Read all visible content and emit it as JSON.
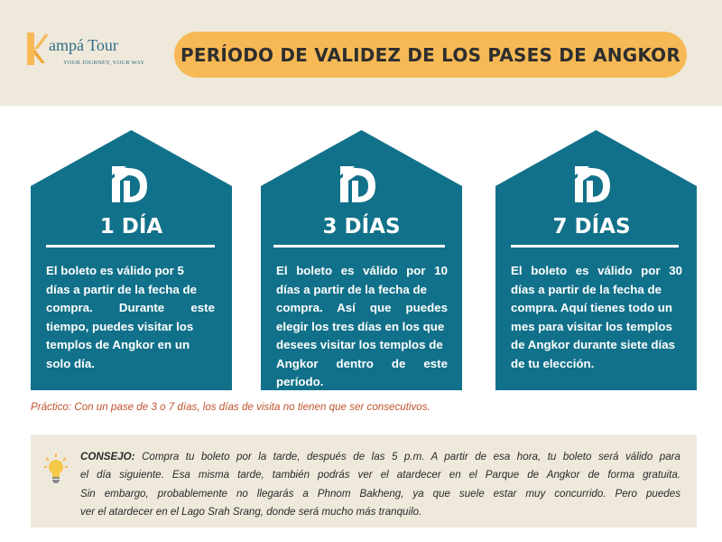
{
  "brand": {
    "name": "ampá Tour",
    "tagline": "YOUR JOURNEY, YOUR WAY",
    "icon": "k-logo-icon",
    "colors": {
      "orange": "#f7b955",
      "blue": "#2f6f86"
    }
  },
  "title": "PERÍODO DE VALIDEZ DE LOS PASES DE ANGKOR",
  "cards": [
    {
      "icon": "angkor-pass-logo-icon",
      "days": "1 DÍA",
      "lines": [
        "El boleto es válido por 5",
        "días a partir de la fecha de",
        "compra. Durante este",
        "tiempo, puedes visitar los",
        "templos de Angkor en un",
        "solo día."
      ]
    },
    {
      "icon": "angkor-pass-logo-icon",
      "days": "3 DÍAS",
      "lines": [
        "El boleto es válido por 10",
        "días a partir de la fecha de",
        "compra. Así que puedes",
        "elegir los tres días en los que",
        "desees visitar los templos de",
        "Angkor dentro de este",
        "período."
      ]
    },
    {
      "icon": "angkor-pass-logo-icon",
      "days": "7 DÍAS",
      "lines": [
        "El boleto es válido por 30",
        "días a partir de la fecha de",
        "compra. Aquí tienes todo un",
        "mes para visitar los templos",
        "de Angkor durante siete días",
        "de tu elección."
      ]
    }
  ],
  "card_color": "#12718a",
  "practico": "Práctico: Con un pase de 3 o 7 días, los días de visita no tienen que ser consecutivos.",
  "tip": {
    "icon": "lightbulb-icon",
    "label": "CONSEJO:",
    "lines": [
      "Compra tu boleto por la tarde, después de las 5 p.m. A partir de esa hora, tu boleto será válido para",
      "el día siguiente. Esa misma tarde, también podrás ver el atardecer en el Parque de Angkor de forma gratuita.",
      "Sin embargo, probablemente no llegarás a Phnom Bakheng, ya que suele estar muy concurrido. Pero puedes",
      "ver el atardecer en el Lago Srah Srang, donde será mucho más tranquilo."
    ]
  }
}
